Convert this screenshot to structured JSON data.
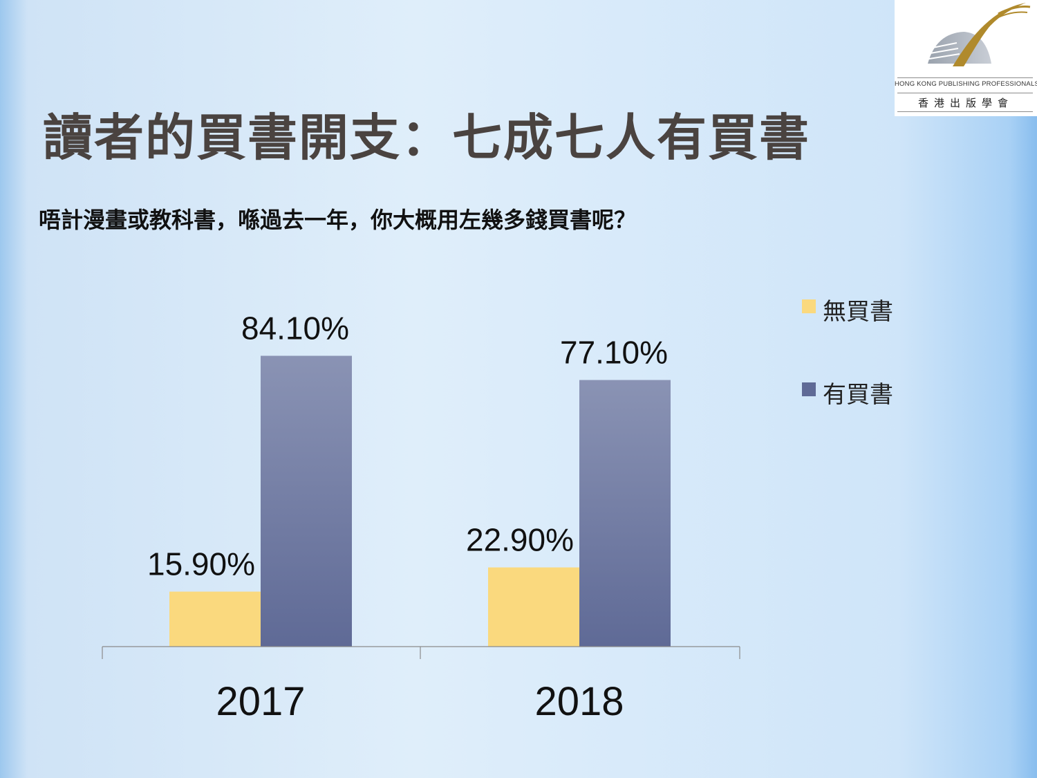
{
  "slide": {
    "title": "讀者的買書開支：七成七人有買書",
    "question": "唔計漫畫或教科書，喺過去一年，你大概用左幾多錢買書呢？"
  },
  "logo": {
    "english_name": "HONG KONG PUBLISHING PROFESSIONALS SOCIETY",
    "chinese_name": "香港出版學會"
  },
  "colors": {
    "no_purchase": "#fad97e",
    "purchase_top": "#8a93b4",
    "purchase_bottom": "#5f6a96",
    "title": "#4a4340"
  },
  "chart_data": {
    "type": "bar",
    "categories": [
      "2017",
      "2018"
    ],
    "series": [
      {
        "name": "無買書",
        "values": [
          15.9,
          22.9
        ],
        "labels": [
          "15.90%",
          "22.90%"
        ]
      },
      {
        "name": "有買書",
        "values": [
          84.1,
          77.1
        ],
        "labels": [
          "84.10%",
          "77.10%"
        ]
      }
    ],
    "ylim": [
      0,
      100
    ],
    "grid": false,
    "legend": "right"
  }
}
